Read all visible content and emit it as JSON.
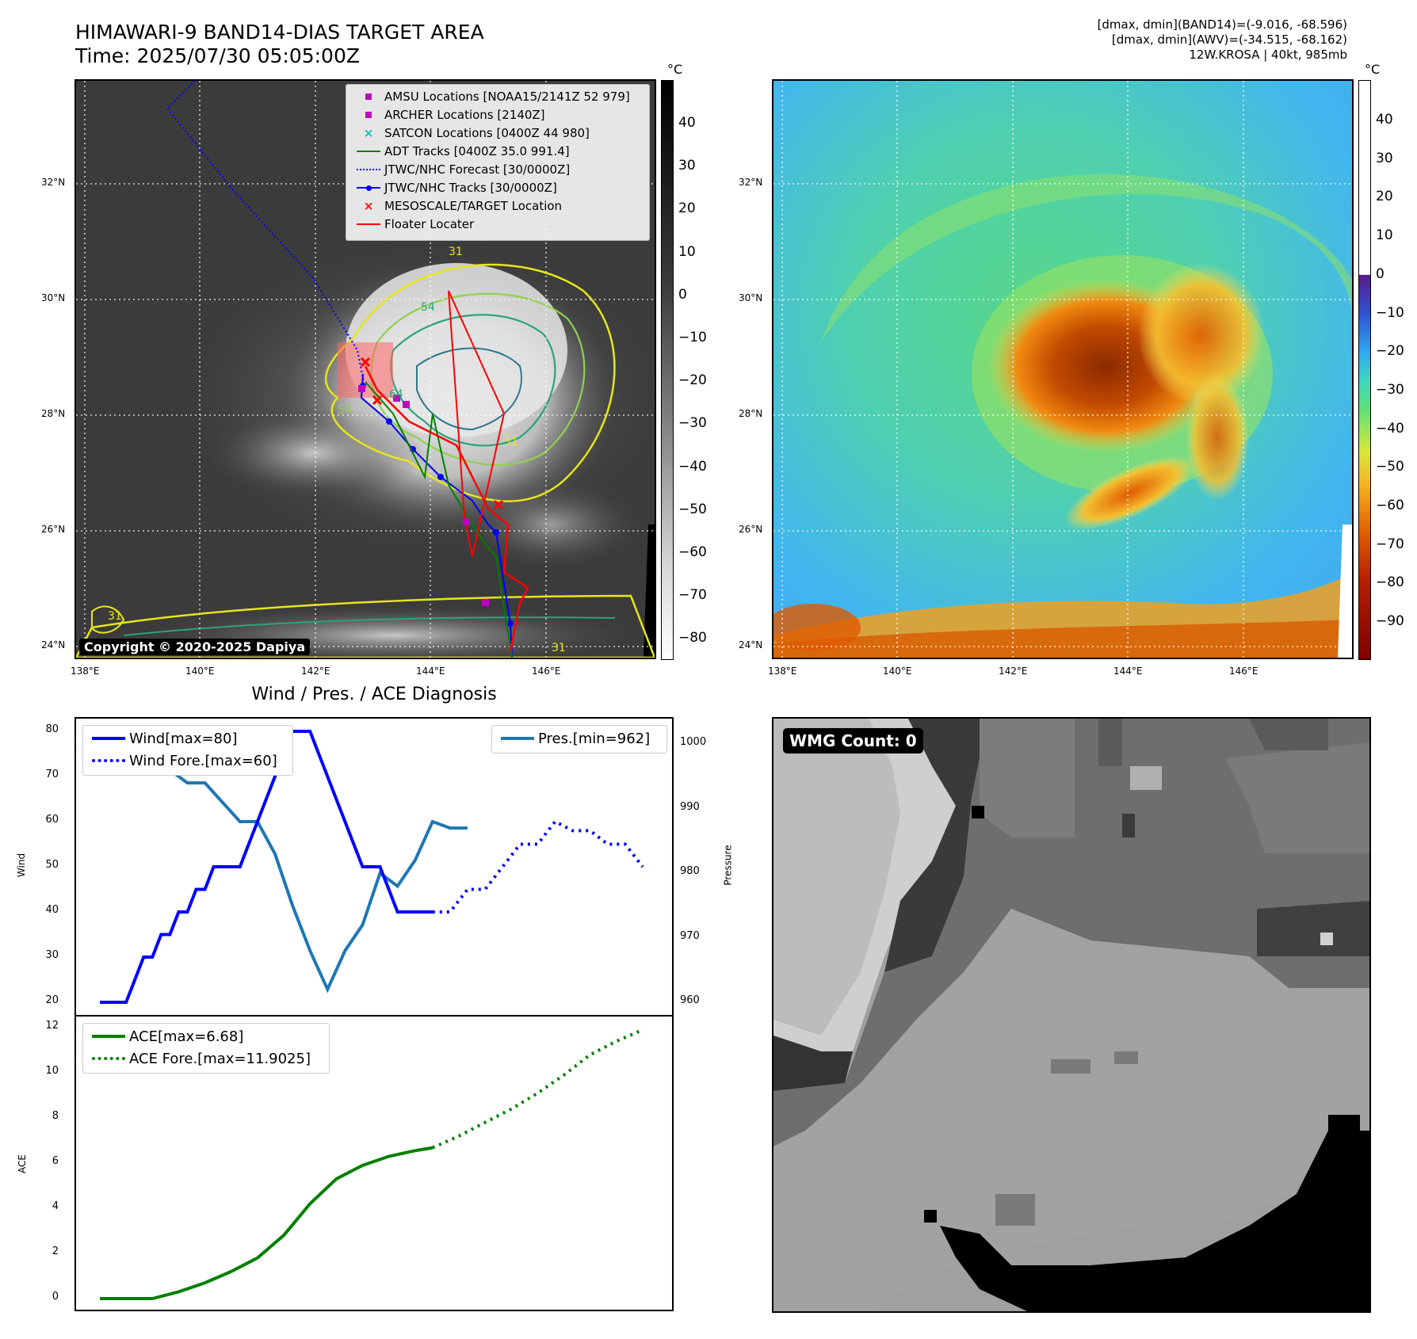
{
  "header": {
    "title_line1": "HIMAWARI-9 BAND14-DIAS TARGET AREA",
    "title_line2": "Time: 2025/07/30 05:05:00Z",
    "info_line1": "[dmax, dmin](BAND14)=(-9.016, -68.596)",
    "info_line2": "[dmax, dmin](AWV)=(-34.515, -68.162)",
    "info_line3": "12W.KROSA | 40kt, 985mb"
  },
  "map_axes": {
    "lat_labels": [
      "32°N",
      "30°N",
      "28°N",
      "26°N",
      "24°N"
    ],
    "lon_labels": [
      "138°E",
      "140°E",
      "142°E",
      "144°E",
      "146°E"
    ]
  },
  "ir_map": {
    "legend": [
      {
        "label": "AMSU Locations [NOAA15/2141Z 52 979]",
        "color": "#c000c0",
        "symbol": "square"
      },
      {
        "label": "ARCHER Locations [2140Z]",
        "color": "#c000c0",
        "symbol": "square"
      },
      {
        "label": "SATCON Locations [0400Z 44 980]",
        "color": "#00bfbf",
        "symbol": "x"
      },
      {
        "label": "ADT Tracks [0400Z 35.0 991.4]",
        "color": "#008000",
        "symbol": "line"
      },
      {
        "label": "JTWC/NHC Forecast [30/0000Z]",
        "color": "#0000ff",
        "symbol": "dotted"
      },
      {
        "label": "JTWC/NHC Tracks [30/0000Z]",
        "color": "#0000ff",
        "symbol": "line-dot"
      },
      {
        "label": "MESOSCALE/TARGET Location",
        "color": "#ff0000",
        "symbol": "x"
      },
      {
        "label": "Floater Locater",
        "color": "#ff0000",
        "symbol": "line"
      }
    ],
    "copyright": "Copyright © 2020-2025 Dapiya",
    "contour_labels": [
      "31",
      "54",
      "64",
      "31",
      "31",
      "31",
      "54"
    ]
  },
  "colorbar_gray": {
    "unit": "°C",
    "ticks": [
      "40",
      "30",
      "20",
      "10",
      "0",
      "−10",
      "−20",
      "−30",
      "−40",
      "−50",
      "−60",
      "−70",
      "−80"
    ]
  },
  "colorbar_color": {
    "unit": "°C",
    "ticks": [
      "40",
      "30",
      "20",
      "10",
      "0",
      "−10",
      "−20",
      "−30",
      "−40",
      "−50",
      "−60",
      "−70",
      "−80",
      "−90"
    ]
  },
  "diagnosis": {
    "title": "Wind / Pres. / ACE Diagnosis",
    "wind_axis_label": "Wind",
    "pressure_axis_label": "Pressure",
    "ace_axis_label": "ACE",
    "wind_ticks": [
      "80",
      "70",
      "60",
      "50",
      "40",
      "30",
      "20"
    ],
    "pressure_ticks": [
      "1000",
      "990",
      "980",
      "970",
      "960"
    ],
    "ace_ticks": [
      "12",
      "10",
      "8",
      "6",
      "4",
      "2",
      "0"
    ],
    "legend_wind": "Wind[max=80]",
    "legend_wind_fore": "Wind Fore.[max=60]",
    "legend_pres": "Pres.[min=962]",
    "legend_ace": "ACE[max=6.68]",
    "legend_ace_fore": "ACE Fore.[max=11.9025]"
  },
  "wmg": {
    "label": "WMG Count: 0"
  },
  "colors": {
    "wind": "#0000ff",
    "pressure": "#1f77b4",
    "ace": "#008000"
  },
  "chart_data": [
    {
      "type": "line",
      "title": "Wind / Pres. / ACE Diagnosis",
      "ylabel": "Wind",
      "ylim": [
        18,
        82
      ],
      "series": [
        {
          "name": "Wind[max=80]",
          "style": "solid",
          "color": "#0000ff",
          "x": [
            0,
            1,
            2,
            3,
            4,
            5,
            6,
            7,
            8,
            9,
            10,
            11,
            12,
            13,
            14,
            15,
            16,
            17,
            18,
            19,
            20,
            21,
            22,
            23,
            24,
            25,
            26,
            27,
            28,
            29,
            30,
            31,
            32,
            33,
            34,
            35,
            36,
            37,
            38,
            39,
            40,
            41,
            42,
            43,
            44,
            45,
            46,
            47,
            48
          ],
          "values": [
            20,
            20,
            20,
            20,
            25,
            30,
            30,
            35,
            35,
            40,
            40,
            45,
            45,
            50,
            50,
            50,
            50,
            55,
            60,
            65,
            70,
            75,
            80,
            80,
            80,
            75,
            70,
            65,
            60,
            55,
            50,
            50,
            50,
            45,
            40,
            40,
            40,
            40,
            40,
            null,
            null,
            null,
            null,
            null,
            null,
            null,
            null,
            null,
            null
          ]
        },
        {
          "name": "Wind Fore.[max=60]",
          "style": "dotted",
          "color": "#0000ff",
          "x": [
            38,
            40,
            42,
            44,
            46,
            48,
            50,
            52,
            54,
            56,
            58,
            60,
            62
          ],
          "values": [
            40,
            40,
            45,
            45,
            50,
            55,
            55,
            60,
            58,
            58,
            55,
            55,
            50
          ]
        }
      ]
    },
    {
      "type": "line",
      "title": "",
      "ylabel": "Pressure",
      "ylim": [
        960,
        1002
      ],
      "series": [
        {
          "name": "Pres.[min=962]",
          "style": "solid",
          "color": "#1f77b4",
          "x": [
            0,
            2,
            4,
            6,
            8,
            10,
            12,
            14,
            16,
            18,
            20,
            22,
            24,
            26,
            28,
            30,
            32,
            34,
            36,
            38,
            40,
            42,
            44
          ],
          "values": [
            1001,
            1001,
            999,
            998,
            996,
            994,
            994,
            991,
            988,
            988,
            983,
            975,
            968,
            962,
            968,
            972,
            980,
            978,
            982,
            988,
            987,
            987,
            null
          ]
        }
      ]
    },
    {
      "type": "line",
      "title": "",
      "ylabel": "ACE",
      "ylim": [
        -0.5,
        12.5
      ],
      "series": [
        {
          "name": "ACE[max=6.68]",
          "style": "solid",
          "color": "#008000",
          "x": [
            0,
            3,
            6,
            9,
            12,
            15,
            18,
            21,
            24,
            27,
            30,
            33,
            36,
            38
          ],
          "values": [
            0,
            0,
            0,
            0.3,
            0.7,
            1.2,
            1.8,
            2.8,
            4.2,
            5.3,
            5.9,
            6.3,
            6.55,
            6.68
          ]
        },
        {
          "name": "ACE Fore.[max=11.9025]",
          "style": "dotted",
          "color": "#008000",
          "x": [
            38,
            41,
            44,
            47,
            50,
            53,
            56,
            59,
            62
          ],
          "values": [
            6.68,
            7.2,
            7.8,
            8.4,
            9.1,
            9.9,
            10.8,
            11.4,
            11.9
          ]
        }
      ]
    }
  ]
}
